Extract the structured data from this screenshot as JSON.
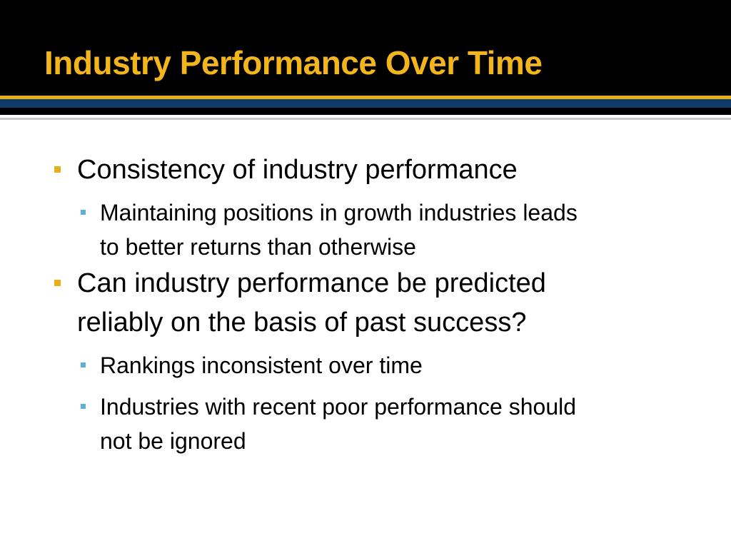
{
  "slide": {
    "title": "Industry Performance Over Time",
    "colors": {
      "title_text": "#f2b51c",
      "gold_band": "#e7b018",
      "navy_band": "#0d3b6a",
      "bullet_level1": "#e7b018",
      "bullet_level2": "#5eb0d8"
    },
    "bullets": [
      {
        "text": "Consistency of industry performance",
        "children": [
          {
            "lines": [
              "Maintaining positions in growth industries leads",
              "to better returns than otherwise"
            ]
          }
        ]
      },
      {
        "lines": [
          "Can industry performance be predicted",
          "reliably on the basis of past success?"
        ],
        "children": [
          {
            "lines": [
              "Rankings inconsistent over time"
            ]
          },
          {
            "lines": [
              "Industries with recent poor performance should",
              "not be ignored"
            ]
          }
        ]
      }
    ]
  }
}
